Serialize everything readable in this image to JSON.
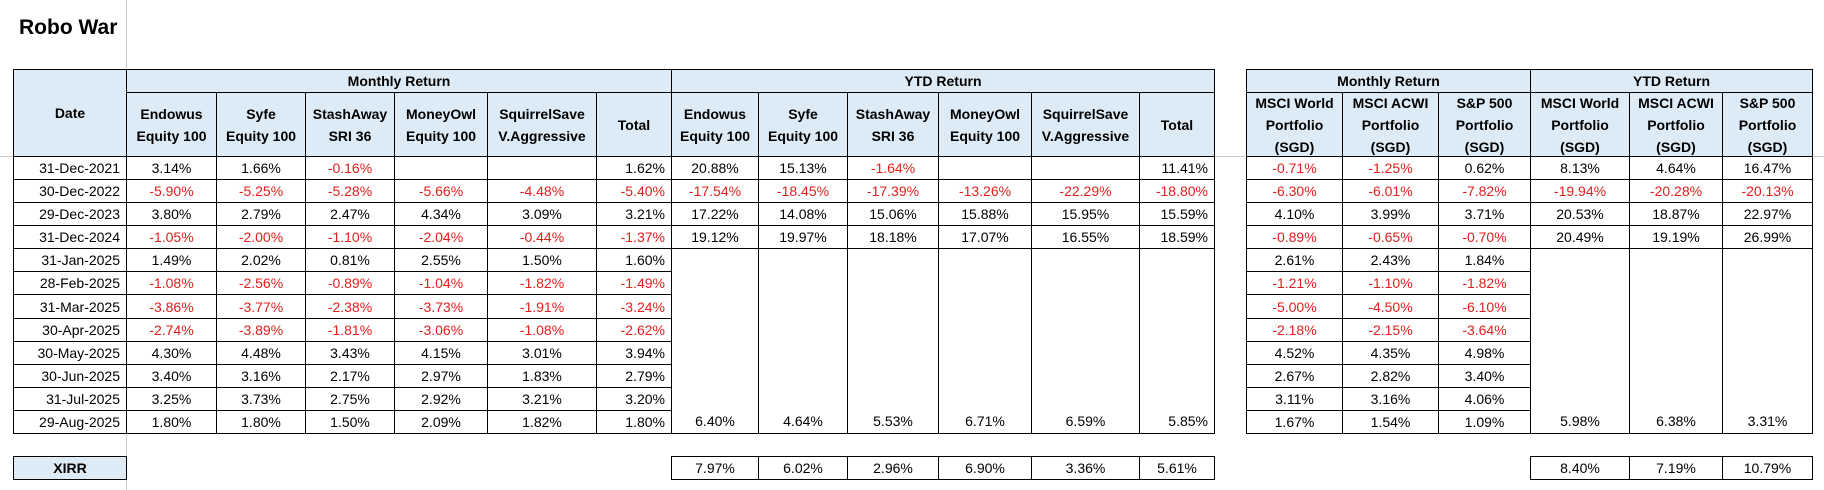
{
  "title": "Robo War",
  "date_header": "Date",
  "groups": [
    "Monthly Return",
    "YTD Return",
    "Monthly Return",
    "YTD Return"
  ],
  "columns": [
    "Endowus\nEquity 100",
    "Syfe\nEquity 100",
    "StashAway\nSRI 36",
    "MoneyOwl\nEquity 100",
    "SquirrelSave\nV.Aggressive",
    "Total",
    "Endowus\nEquity 100",
    "Syfe\nEquity 100",
    "StashAway\nSRI 36",
    "MoneyOwl\nEquity 100",
    "SquirrelSave\nV.Aggressive",
    "Total",
    "MSCI World\nPortfolio\n(SGD)",
    "MSCI ACWI\nPortfolio\n(SGD)",
    "S&P 500\nPortfolio\n(SGD)",
    "MSCI World\nPortfolio\n(SGD)",
    "MSCI ACWI\nPortfolio\n(SGD)",
    "S&P 500\nPortfolio\n(SGD)"
  ],
  "rows": [
    {
      "date": "31-Dec-2021",
      "cells": [
        "3.14%",
        "1.66%",
        "-0.16%",
        null,
        null,
        "1.62%",
        "20.88%",
        "15.13%",
        "-1.64%",
        null,
        null,
        "11.41%",
        "-0.71%",
        "-1.25%",
        "0.62%",
        "8.13%",
        "4.64%",
        "16.47%"
      ]
    },
    {
      "date": "30-Dec-2022",
      "cells": [
        "-5.90%",
        "-5.25%",
        "-5.28%",
        "-5.66%",
        "-4.48%",
        "-5.40%",
        "-17.54%",
        "-18.45%",
        "-17.39%",
        "-13.26%",
        "-22.29%",
        "-18.80%",
        "-6.30%",
        "-6.01%",
        "-7.82%",
        "-19.94%",
        "-20.28%",
        "-20.13%"
      ]
    },
    {
      "date": "29-Dec-2023",
      "cells": [
        "3.80%",
        "2.79%",
        "2.47%",
        "4.34%",
        "3.09%",
        "3.21%",
        "17.22%",
        "14.08%",
        "15.06%",
        "15.88%",
        "15.95%",
        "15.59%",
        "4.10%",
        "3.99%",
        "3.71%",
        "20.53%",
        "18.87%",
        "22.97%"
      ]
    },
    {
      "date": "31-Dec-2024",
      "cells": [
        "-1.05%",
        "-2.00%",
        "-1.10%",
        "-2.04%",
        "-0.44%",
        "-1.37%",
        "19.12%",
        "19.97%",
        "18.18%",
        "17.07%",
        "16.55%",
        "18.59%",
        "-0.89%",
        "-0.65%",
        "-0.70%",
        "20.49%",
        "19.19%",
        "26.99%"
      ]
    },
    {
      "date": "31-Jan-2025",
      "cells": [
        "1.49%",
        "2.02%",
        "0.81%",
        "2.55%",
        "1.50%",
        "1.60%",
        null,
        null,
        null,
        null,
        null,
        null,
        "2.61%",
        "2.43%",
        "1.84%",
        null,
        null,
        null
      ]
    },
    {
      "date": "28-Feb-2025",
      "cells": [
        "-1.08%",
        "-2.56%",
        "-0.89%",
        "-1.04%",
        "-1.82%",
        "-1.49%",
        null,
        null,
        null,
        null,
        null,
        null,
        "-1.21%",
        "-1.10%",
        "-1.82%",
        null,
        null,
        null
      ]
    },
    {
      "date": "31-Mar-2025",
      "cells": [
        "-3.86%",
        "-3.77%",
        "-2.38%",
        "-3.73%",
        "-1.91%",
        "-3.24%",
        null,
        null,
        null,
        null,
        null,
        null,
        "-5.00%",
        "-4.50%",
        "-6.10%",
        null,
        null,
        null
      ]
    },
    {
      "date": "30-Apr-2025",
      "cells": [
        "-2.74%",
        "-3.89%",
        "-1.81%",
        "-3.06%",
        "-1.08%",
        "-2.62%",
        null,
        null,
        null,
        null,
        null,
        null,
        "-2.18%",
        "-2.15%",
        "-3.64%",
        null,
        null,
        null
      ]
    },
    {
      "date": "30-May-2025",
      "cells": [
        "4.30%",
        "4.48%",
        "3.43%",
        "4.15%",
        "3.01%",
        "3.94%",
        null,
        null,
        null,
        null,
        null,
        null,
        "4.52%",
        "4.35%",
        "4.98%",
        null,
        null,
        null
      ]
    },
    {
      "date": "30-Jun-2025",
      "cells": [
        "3.40%",
        "3.16%",
        "2.17%",
        "2.97%",
        "1.83%",
        "2.79%",
        null,
        null,
        null,
        null,
        null,
        null,
        "2.67%",
        "2.82%",
        "3.40%",
        null,
        null,
        null
      ]
    },
    {
      "date": "31-Jul-2025",
      "cells": [
        "3.25%",
        "3.73%",
        "2.75%",
        "2.92%",
        "3.21%",
        "3.20%",
        null,
        null,
        null,
        null,
        null,
        null,
        "3.11%",
        "3.16%",
        "4.06%",
        null,
        null,
        null
      ]
    },
    {
      "date": "29-Aug-2025",
      "cells": [
        "1.80%",
        "1.80%",
        "1.50%",
        "2.09%",
        "1.82%",
        "1.80%",
        "6.40%",
        "4.64%",
        "5.53%",
        "6.71%",
        "6.59%",
        "5.85%",
        "1.67%",
        "1.54%",
        "1.09%",
        "5.98%",
        "6.38%",
        "3.31%"
      ]
    }
  ],
  "xirr": {
    "label": "XIRR",
    "cells": [
      null,
      null,
      null,
      null,
      null,
      null,
      "7.97%",
      "6.02%",
      "2.96%",
      "6.90%",
      "3.36%",
      "5.61%",
      null,
      null,
      null,
      "8.40%",
      "7.19%",
      "10.79%"
    ]
  }
}
